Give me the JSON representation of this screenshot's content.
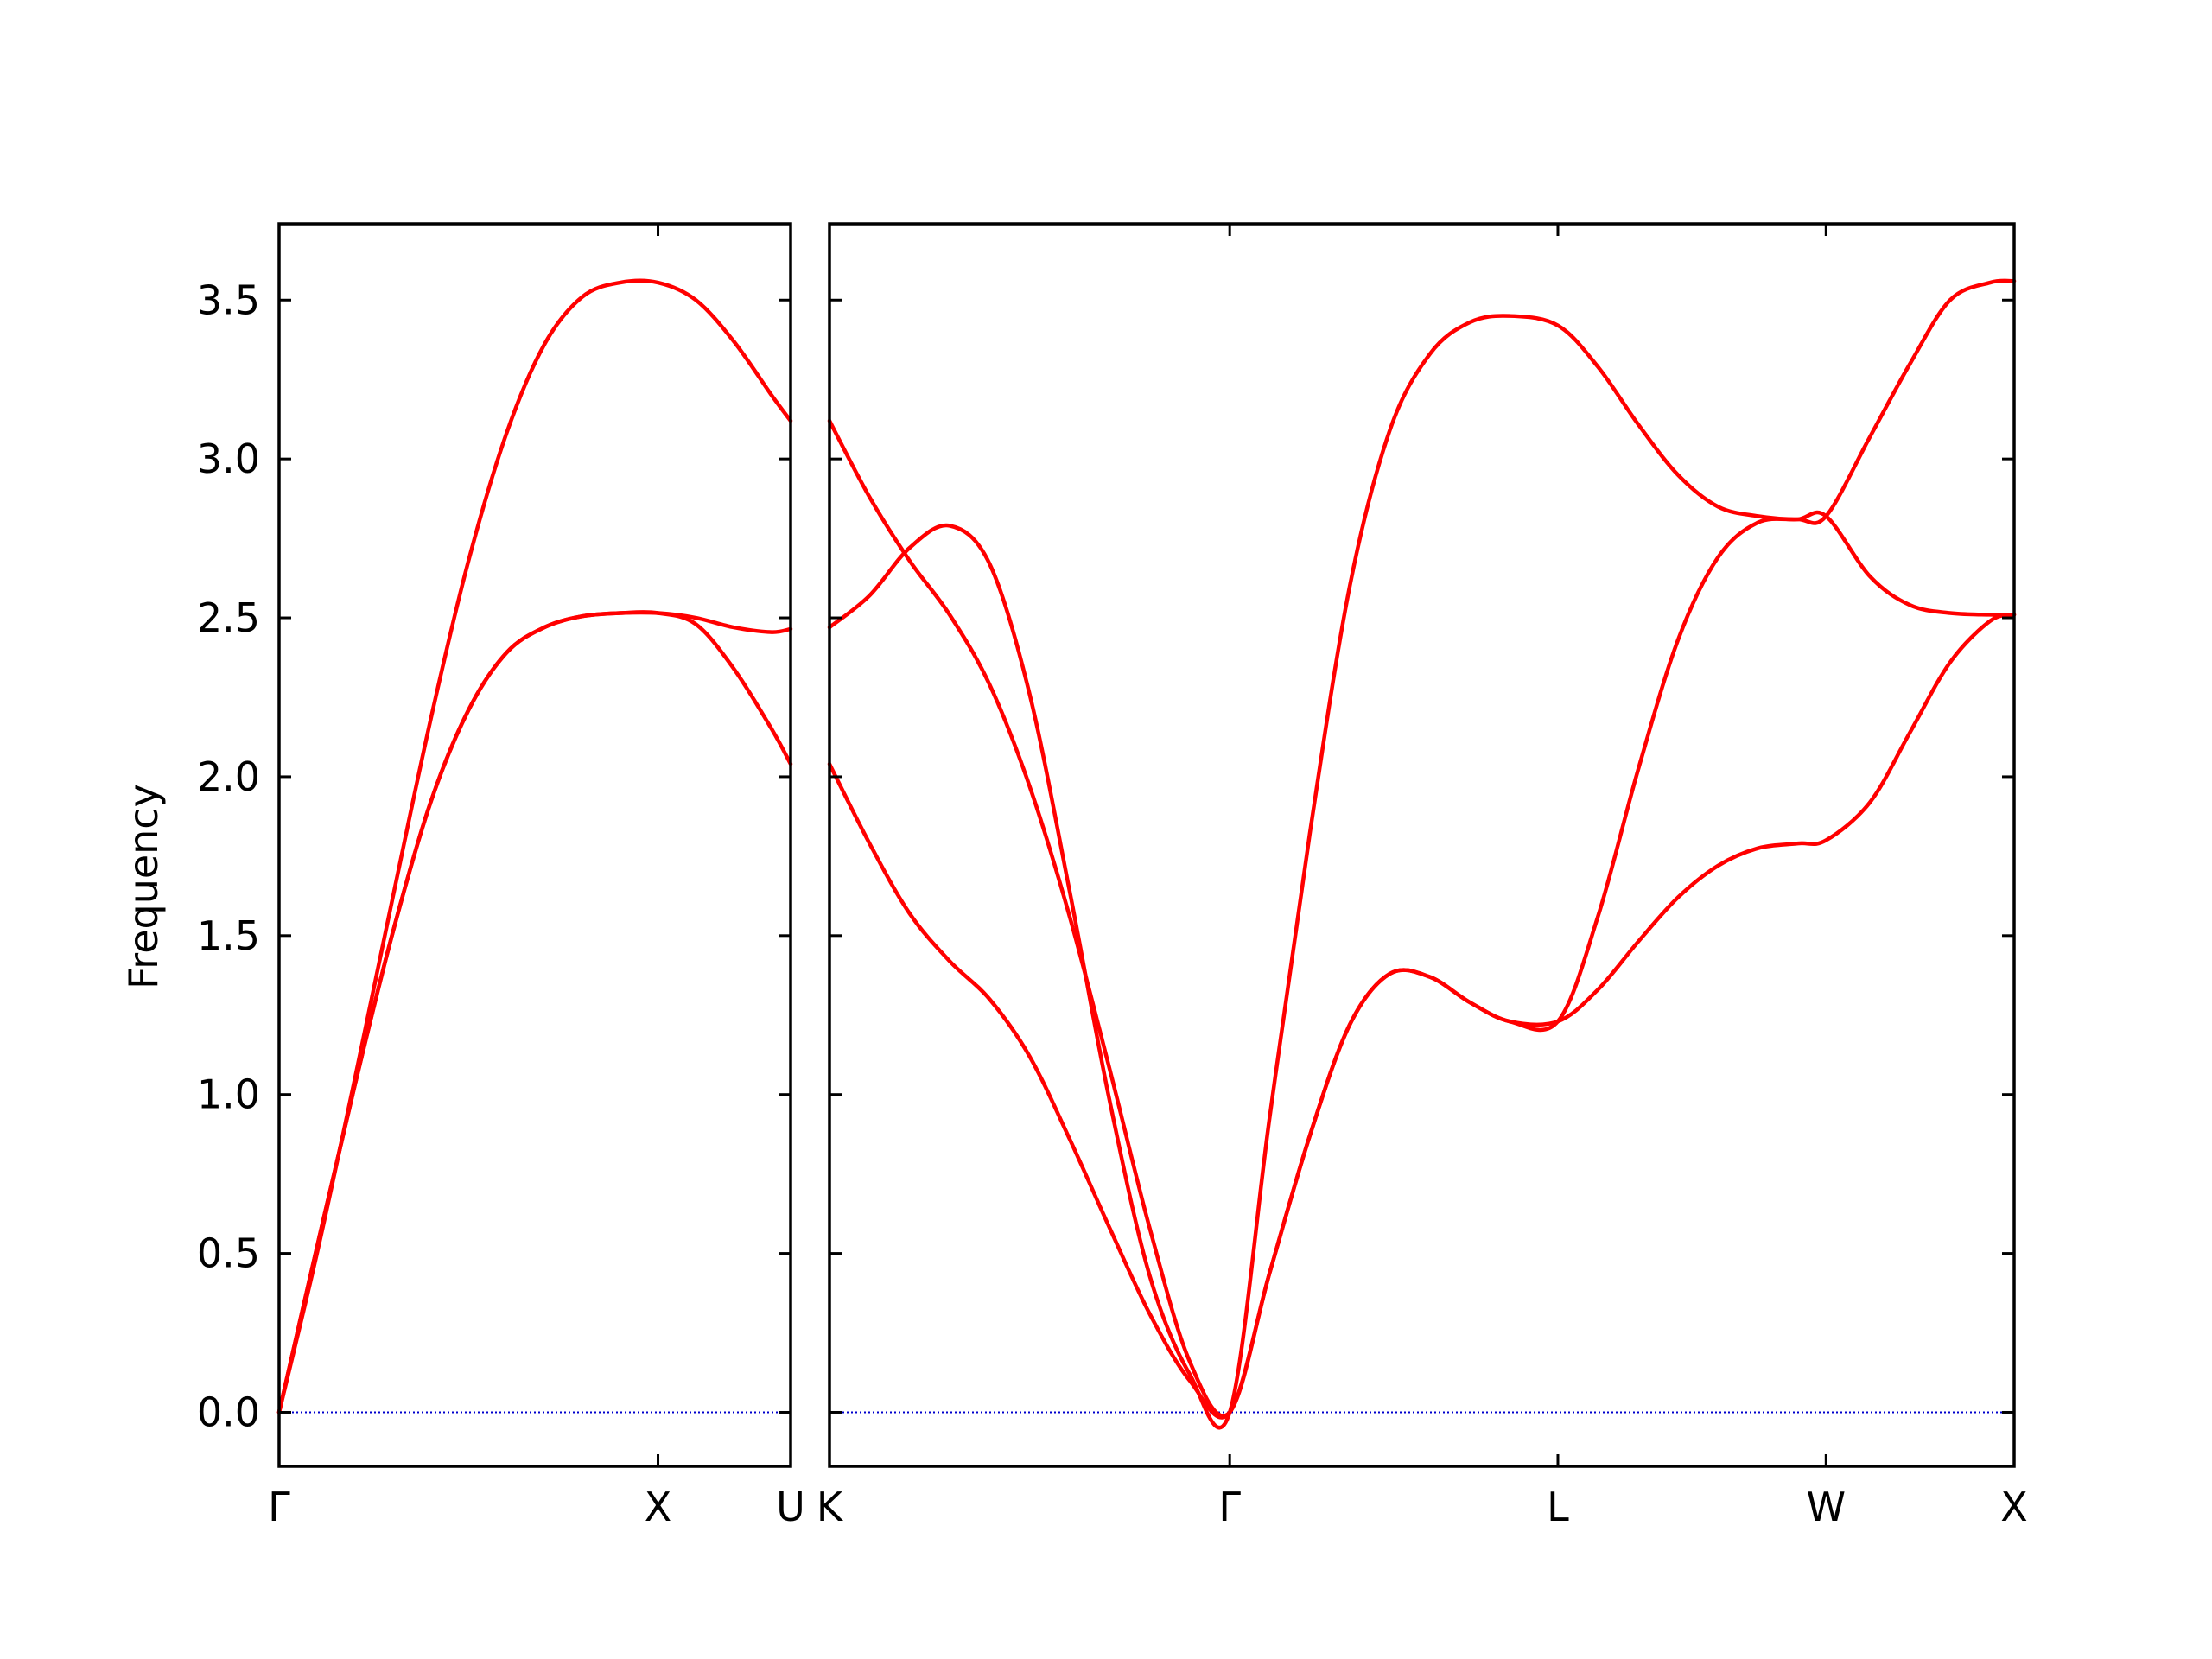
{
  "chart_data": {
    "type": "line",
    "title": "",
    "ylabel": "Frequency",
    "ylim": [
      -0.17,
      3.74
    ],
    "yticks": [
      0.0,
      0.5,
      1.0,
      1.5,
      2.0,
      2.5,
      3.0,
      3.5
    ],
    "ytick_labels": [
      "0.0",
      "0.5",
      "1.0",
      "1.5",
      "2.0",
      "2.5",
      "3.0",
      "3.5"
    ],
    "grid": false,
    "colors": {
      "band": "#ff0000",
      "zero_line": "#0000cc",
      "frame": "#000000"
    },
    "panels": [
      {
        "name": "panel-gamma-x-u",
        "xlim": [
          0,
          1.35
        ],
        "xticks": [
          0,
          1.0,
          1.35
        ],
        "xtick_labels": [
          "Γ",
          "X",
          "U"
        ],
        "zero_line": true,
        "series": [
          {
            "x": [
              0,
              0.1,
              0.2,
              0.3,
              0.4,
              0.5,
              0.6,
              0.7,
              0.8,
              0.9,
              1.0,
              1.1,
              1.2,
              1.3,
              1.35
            ],
            "values": [
              0,
              0.52,
              1.03,
              1.51,
              1.92,
              2.21,
              2.39,
              2.47,
              2.505,
              2.515,
              2.515,
              2.5,
              2.47,
              2.455,
              2.465
            ]
          },
          {
            "x": [
              0,
              0.1,
              0.2,
              0.3,
              0.4,
              0.5,
              0.6,
              0.7,
              0.8,
              0.9,
              1.0,
              1.1,
              1.2,
              1.3,
              1.35
            ],
            "values": [
              0,
              0.52,
              1.03,
              1.51,
              1.92,
              2.21,
              2.39,
              2.47,
              2.505,
              2.515,
              2.515,
              2.48,
              2.34,
              2.15,
              2.04
            ]
          },
          {
            "x": [
              0,
              0.1,
              0.2,
              0.3,
              0.4,
              0.5,
              0.6,
              0.7,
              0.8,
              0.9,
              1.0,
              1.1,
              1.2,
              1.3,
              1.35
            ],
            "values": [
              0,
              0.5,
              1.05,
              1.62,
              2.18,
              2.68,
              3.08,
              3.36,
              3.51,
              3.555,
              3.555,
              3.5,
              3.37,
              3.2,
              3.12
            ]
          }
        ]
      },
      {
        "name": "panel-k-gamma-l-w-x",
        "xlim": [
          0,
          2.96
        ],
        "xticks": [
          0,
          1.0,
          1.82,
          2.49,
          2.96
        ],
        "xtick_labels": [
          "K",
          "Γ",
          "L",
          "W",
          "X"
        ],
        "zero_line": true,
        "series": [
          {
            "x": [
              0,
              0.1,
              0.2,
              0.3,
              0.4,
              0.5,
              0.6,
              0.7,
              0.8,
              0.9,
              1.0,
              1.1,
              1.2,
              1.3,
              1.4,
              1.5,
              1.6,
              1.7,
              1.82,
              1.92,
              2.02,
              2.12,
              2.22,
              2.32,
              2.42,
              2.49,
              2.6,
              2.7,
              2.8,
              2.9,
              2.96
            ],
            "values": [
              2.04,
              1.79,
              1.57,
              1.42,
              1.3,
              1.12,
              0.86,
              0.58,
              0.31,
              0.1,
              0,
              0.44,
              0.87,
              1.22,
              1.38,
              1.37,
              1.29,
              1.23,
              1.23,
              1.33,
              1.48,
              1.62,
              1.72,
              1.775,
              1.79,
              1.8,
              1.92,
              2.14,
              2.36,
              2.49,
              2.51
            ]
          },
          {
            "x": [
              0,
              0.1,
              0.2,
              0.3,
              0.4,
              0.5,
              0.6,
              0.7,
              0.8,
              0.9,
              1.0,
              1.1,
              1.2,
              1.3,
              1.4,
              1.5,
              1.6,
              1.7,
              1.82,
              1.92,
              2.02,
              2.12,
              2.22,
              2.32,
              2.42,
              2.49,
              2.6,
              2.7,
              2.8,
              2.9,
              2.96
            ],
            "values": [
              3.12,
              2.88,
              2.68,
              2.51,
              2.29,
              1.97,
              1.56,
              1.08,
              0.58,
              0.16,
              0,
              0.44,
              0.87,
              1.22,
              1.38,
              1.37,
              1.29,
              1.23,
              1.23,
              1.56,
              2.02,
              2.43,
              2.69,
              2.8,
              2.81,
              2.82,
              2.63,
              2.54,
              2.515,
              2.51,
              2.51
            ]
          },
          {
            "x": [
              0,
              0.1,
              0.2,
              0.3,
              0.4,
              0.5,
              0.6,
              0.7,
              0.8,
              0.9,
              1.0,
              1.1,
              1.2,
              1.3,
              1.4,
              1.5,
              1.6,
              1.7,
              1.82,
              1.92,
              2.02,
              2.12,
              2.22,
              2.32,
              2.42,
              2.49,
              2.6,
              2.7,
              2.8,
              2.9,
              2.96
            ],
            "values": [
              2.47,
              2.57,
              2.72,
              2.79,
              2.67,
              2.26,
              1.64,
              0.98,
              0.43,
              0.12,
              0,
              0.93,
              1.82,
              2.6,
              3.09,
              3.33,
              3.43,
              3.45,
              3.42,
              3.29,
              3.11,
              2.95,
              2.85,
              2.82,
              2.81,
              2.82,
              3.07,
              3.3,
              3.5,
              3.555,
              3.56
            ]
          }
        ]
      }
    ]
  }
}
